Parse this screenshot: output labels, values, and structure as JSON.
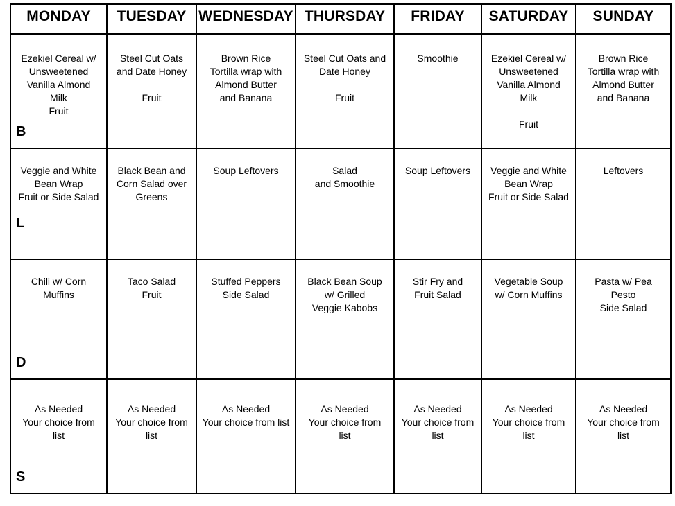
{
  "page": {
    "background_color": "#ffffff",
    "border_color": "#000000",
    "text_color": "#000000"
  },
  "calendar": {
    "days": [
      "MONDAY",
      "TUESDAY",
      "WEDNESDAY",
      "THURSDAY",
      "FRIDAY",
      "SATURDAY",
      "SUNDAY"
    ],
    "meal_rows": [
      {
        "label": "B",
        "cells": [
          [
            "Ezekiel Cereal w/",
            "Unsweetened",
            "Vanilla Almond",
            "Milk",
            "Fruit"
          ],
          [
            "Steel Cut Oats",
            "and Date Honey",
            "",
            "Fruit"
          ],
          [
            "Brown Rice",
            "Tortilla wrap with",
            "Almond Butter",
            "and Banana"
          ],
          [
            "Steel Cut Oats and",
            "Date Honey",
            "",
            "Fruit"
          ],
          [
            "Smoothie"
          ],
          [
            "Ezekiel Cereal w/",
            "Unsweetened",
            "Vanilla Almond",
            "Milk",
            "",
            "Fruit"
          ],
          [
            "Brown Rice",
            "Tortilla wrap with",
            "Almond Butter",
            "and Banana"
          ]
        ]
      },
      {
        "label": "L",
        "cells": [
          [
            "Veggie and White",
            "Bean Wrap",
            "Fruit or Side Salad"
          ],
          [
            "Black Bean and",
            "Corn Salad over",
            "Greens"
          ],
          [
            "Soup Leftovers"
          ],
          [
            "Salad",
            "and Smoothie"
          ],
          [
            "Soup Leftovers"
          ],
          [
            "Veggie and White",
            "Bean Wrap",
            "Fruit or Side Salad"
          ],
          [
            "Leftovers"
          ]
        ]
      },
      {
        "label": "D",
        "cells": [
          [
            "Chili w/ Corn",
            "Muffins"
          ],
          [
            "Taco Salad",
            "Fruit"
          ],
          [
            "Stuffed Peppers",
            "Side Salad"
          ],
          [
            "Black Bean Soup",
            "w/ Grilled",
            "Veggie Kabobs"
          ],
          [
            "Stir Fry and",
            "Fruit Salad"
          ],
          [
            "Vegetable Soup",
            "w/ Corn Muffins"
          ],
          [
            "Pasta w/ Pea",
            "Pesto",
            "Side Salad"
          ]
        ]
      },
      {
        "label": "S",
        "cells": [
          [
            "As Needed",
            "Your choice from",
            "list"
          ],
          [
            "As Needed",
            "Your choice from",
            "list"
          ],
          [
            "As Needed",
            "Your choice from list"
          ],
          [
            "As Needed",
            "Your choice from",
            "list"
          ],
          [
            "As Needed",
            "Your choice from",
            "list"
          ],
          [
            "As Needed",
            "Your choice from",
            "list"
          ],
          [
            "As Needed",
            "Your choice from",
            "list"
          ]
        ]
      }
    ]
  }
}
